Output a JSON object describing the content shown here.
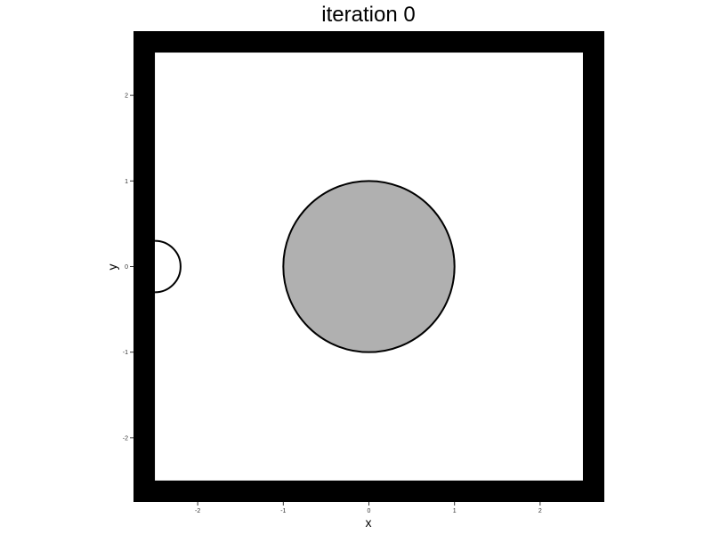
{
  "chart_data": {
    "type": "scatter",
    "title": "iteration 0",
    "xlabel": "x",
    "ylabel": "y",
    "xlim": [
      -2.75,
      2.75
    ],
    "ylim": [
      -2.75,
      2.75
    ],
    "x_ticks": [
      -2,
      -1,
      0,
      1,
      2
    ],
    "y_ticks": [
      -2,
      -1,
      0,
      1,
      2
    ],
    "x_tick_labels": [
      "-2",
      "-1",
      "0",
      "1",
      "2"
    ],
    "y_tick_labels": [
      "-2",
      "-1",
      "0",
      "1",
      "2"
    ],
    "grid": false,
    "boundary": {
      "inner_half_width": 2.5,
      "outer_half_width": 2.75,
      "color": "#000000"
    },
    "shapes": [
      {
        "kind": "circle",
        "cx": 0,
        "cy": 0,
        "r": 1,
        "fill": "#b0b0b0",
        "stroke": "#000000"
      },
      {
        "kind": "half-circle",
        "cx": -2.5,
        "cy": 0,
        "r": 0.3,
        "fill": "#ffffff",
        "stroke": "#000000"
      }
    ]
  }
}
